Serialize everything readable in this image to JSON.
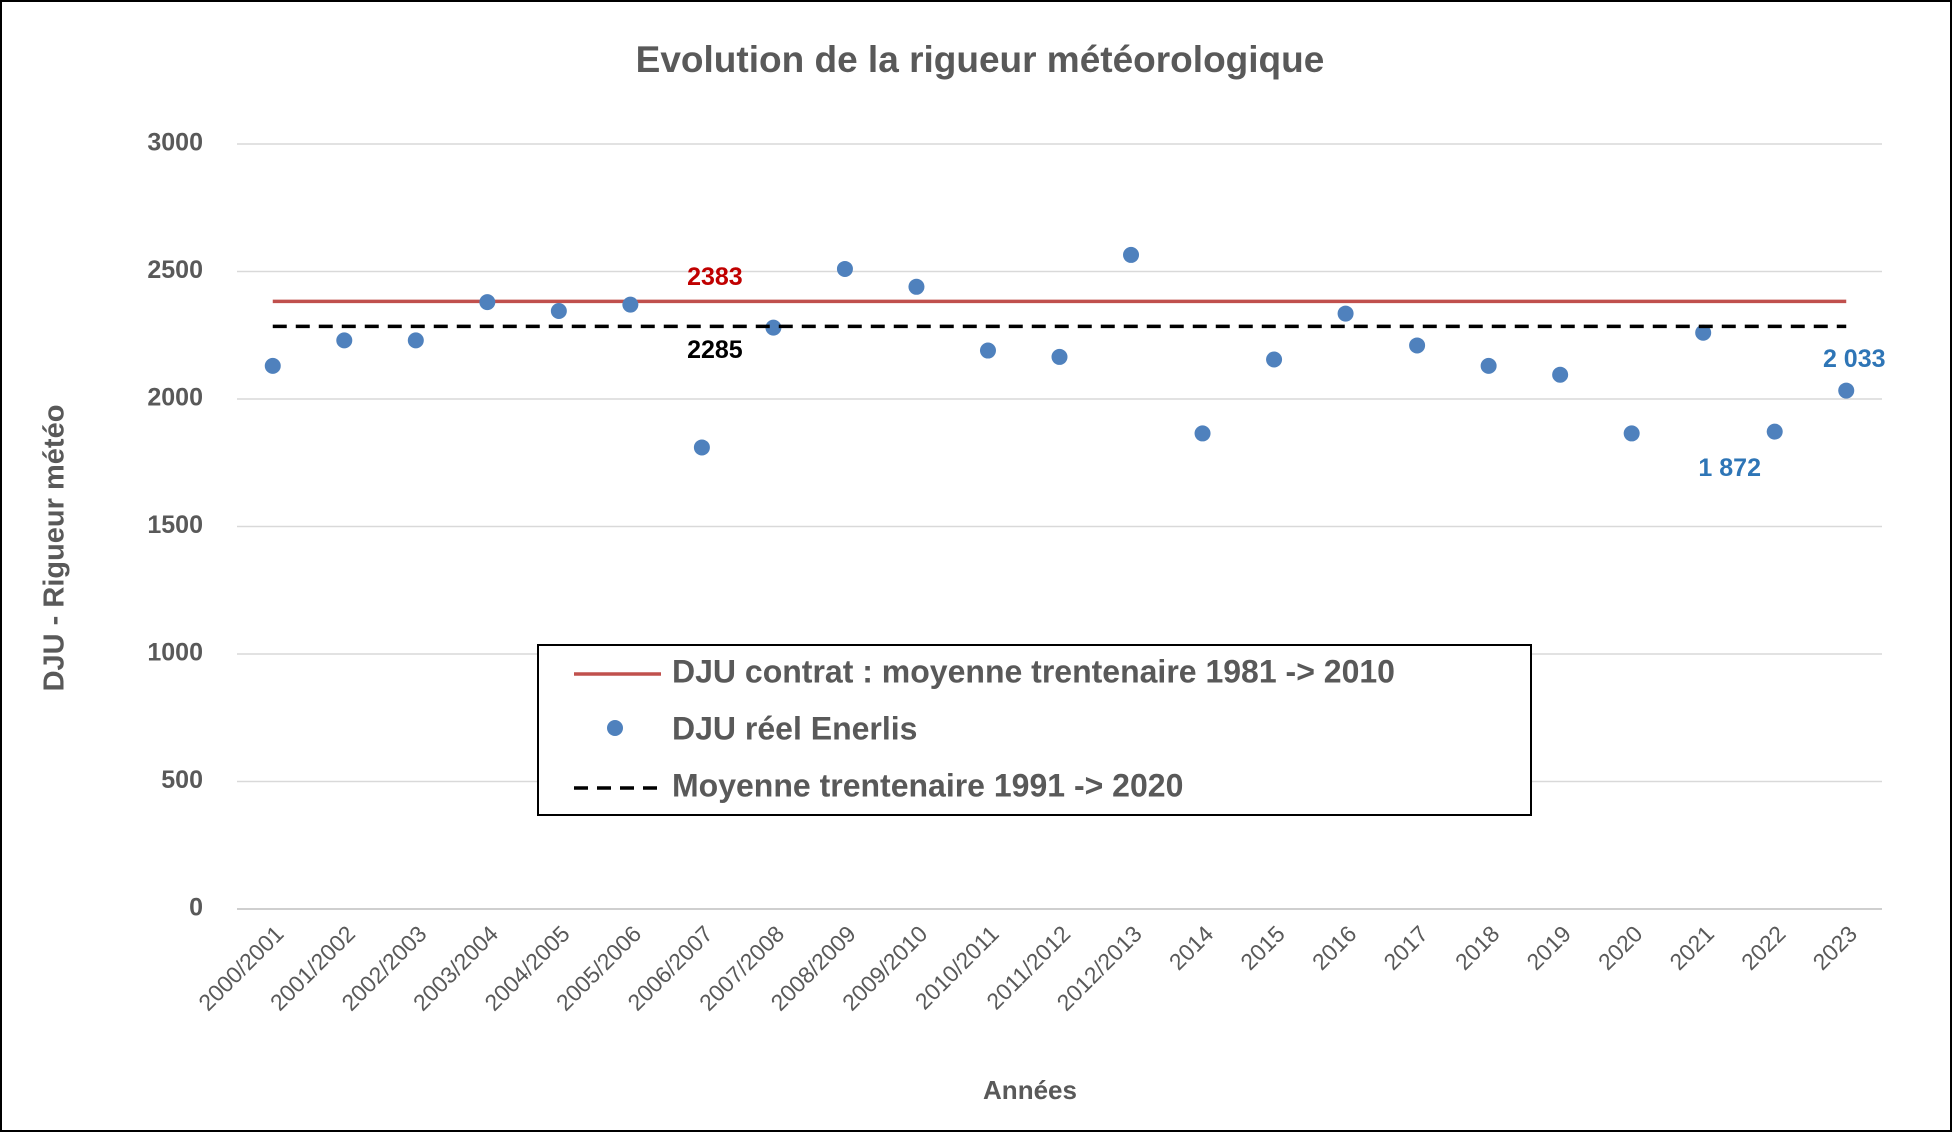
{
  "chart_data": {
    "type": "scatter",
    "title": "Evolution de la rigueur météorologique",
    "x_label": "Années",
    "y_label": "DJU - Rigueur météo",
    "categories": [
      "2000/2001",
      "2001/2002",
      "2002/2003",
      "2003/2004",
      "2004/2005",
      "2005/2006",
      "2006/2007",
      "2007/2008",
      "2008/2009",
      "2009/2010",
      "2010/2011",
      "2011/2012",
      "2012/2013",
      "2014",
      "2015",
      "2016",
      "2017",
      "2018",
      "2019",
      "2020",
      "2021",
      "2022",
      "2023"
    ],
    "series": [
      {
        "name": "DJU contrat : moyenne trentenaire 1981 -> 2010",
        "type": "line",
        "dashed": false,
        "color": "#c0504d",
        "label_color": "#c00000",
        "values": [
          2383,
          2383,
          2383,
          2383,
          2383,
          2383,
          2383,
          2383,
          2383,
          2383,
          2383,
          2383,
          2383,
          2383,
          2383,
          2383,
          2383,
          2383,
          2383,
          2383,
          2383,
          2383,
          2383
        ],
        "value_labels": [
          null,
          null,
          null,
          null,
          null,
          null,
          "2383",
          null,
          null,
          null,
          null,
          null,
          null,
          null,
          null,
          null,
          null,
          null,
          null,
          null,
          null,
          null,
          null
        ]
      },
      {
        "name": "DJU réel Enerlis",
        "type": "scatter",
        "color": "#4f81bd",
        "label_color": "#2e75b6",
        "values": [
          2130,
          2230,
          2230,
          2380,
          2345,
          2370,
          1810,
          2280,
          2510,
          2440,
          2190,
          2165,
          2565,
          1865,
          2155,
          2335,
          2210,
          2130,
          2095,
          1865,
          2260,
          1872,
          2033
        ],
        "value_labels": [
          null,
          null,
          null,
          null,
          null,
          null,
          null,
          null,
          null,
          null,
          null,
          null,
          null,
          null,
          null,
          null,
          null,
          null,
          null,
          null,
          null,
          "1 872",
          "2 033"
        ]
      },
      {
        "name": "Moyenne trentenaire 1991 -> 2020",
        "type": "line",
        "dashed": true,
        "color": "#000000",
        "label_color": "#000000",
        "values": [
          2285,
          2285,
          2285,
          2285,
          2285,
          2285,
          2285,
          2285,
          2285,
          2285,
          2285,
          2285,
          2285,
          2285,
          2285,
          2285,
          2285,
          2285,
          2285,
          2285,
          2285,
          2285,
          2285
        ],
        "value_labels": [
          null,
          null,
          null,
          null,
          null,
          null,
          "2285",
          null,
          null,
          null,
          null,
          null,
          null,
          null,
          null,
          null,
          null,
          null,
          null,
          null,
          null,
          null,
          null
        ]
      }
    ],
    "ylim": [
      0,
      3000
    ],
    "yticks": [
      0,
      500,
      1000,
      1500,
      2000,
      2500,
      3000
    ],
    "grid": true
  }
}
